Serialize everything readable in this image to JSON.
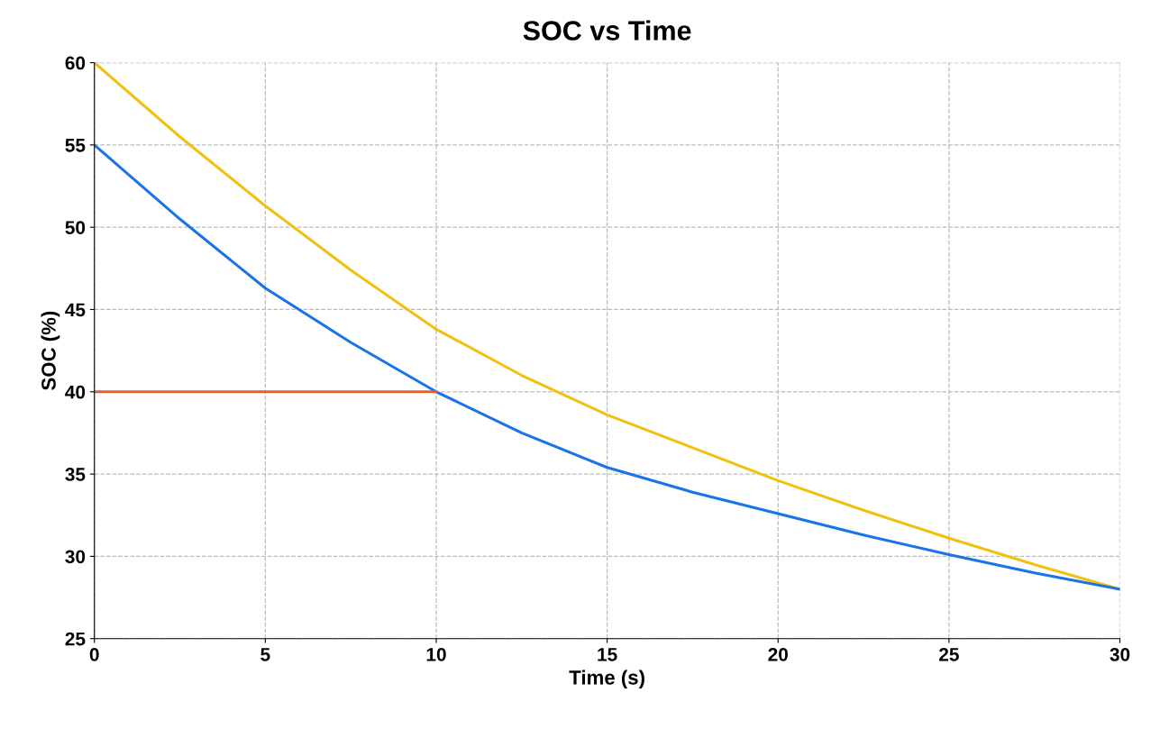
{
  "chart_data": {
    "type": "line",
    "title": "SOC vs Time",
    "xlabel": "Time (s)",
    "ylabel": "SOC (%)",
    "x": [
      0,
      2.5,
      5,
      7.5,
      10,
      12.5,
      15,
      17.5,
      20,
      22.5,
      25,
      27.5,
      30
    ],
    "series": [
      {
        "color": "#f2c010",
        "values": [
          60,
          55.5,
          51.3,
          47.4,
          43.8,
          41,
          38.6,
          36.6,
          34.6,
          32.8,
          31.1,
          29.5,
          28
        ]
      },
      {
        "color": "#1a73e8",
        "values": [
          55,
          50.5,
          46.3,
          43,
          40,
          37.5,
          35.4,
          33.9,
          32.6,
          31.3,
          30.1,
          29,
          28
        ]
      },
      {
        "color": "#f05a28",
        "x": [
          0,
          10
        ],
        "values": [
          40,
          40
        ]
      }
    ],
    "xlim": [
      0,
      30
    ],
    "ylim": [
      25,
      60
    ],
    "xticks": [
      0,
      5,
      10,
      15,
      20,
      25,
      30
    ],
    "yticks": [
      25,
      30,
      35,
      40,
      45,
      50,
      55,
      60
    ],
    "grid": true,
    "line_style": "solid",
    "marker": "none"
  }
}
